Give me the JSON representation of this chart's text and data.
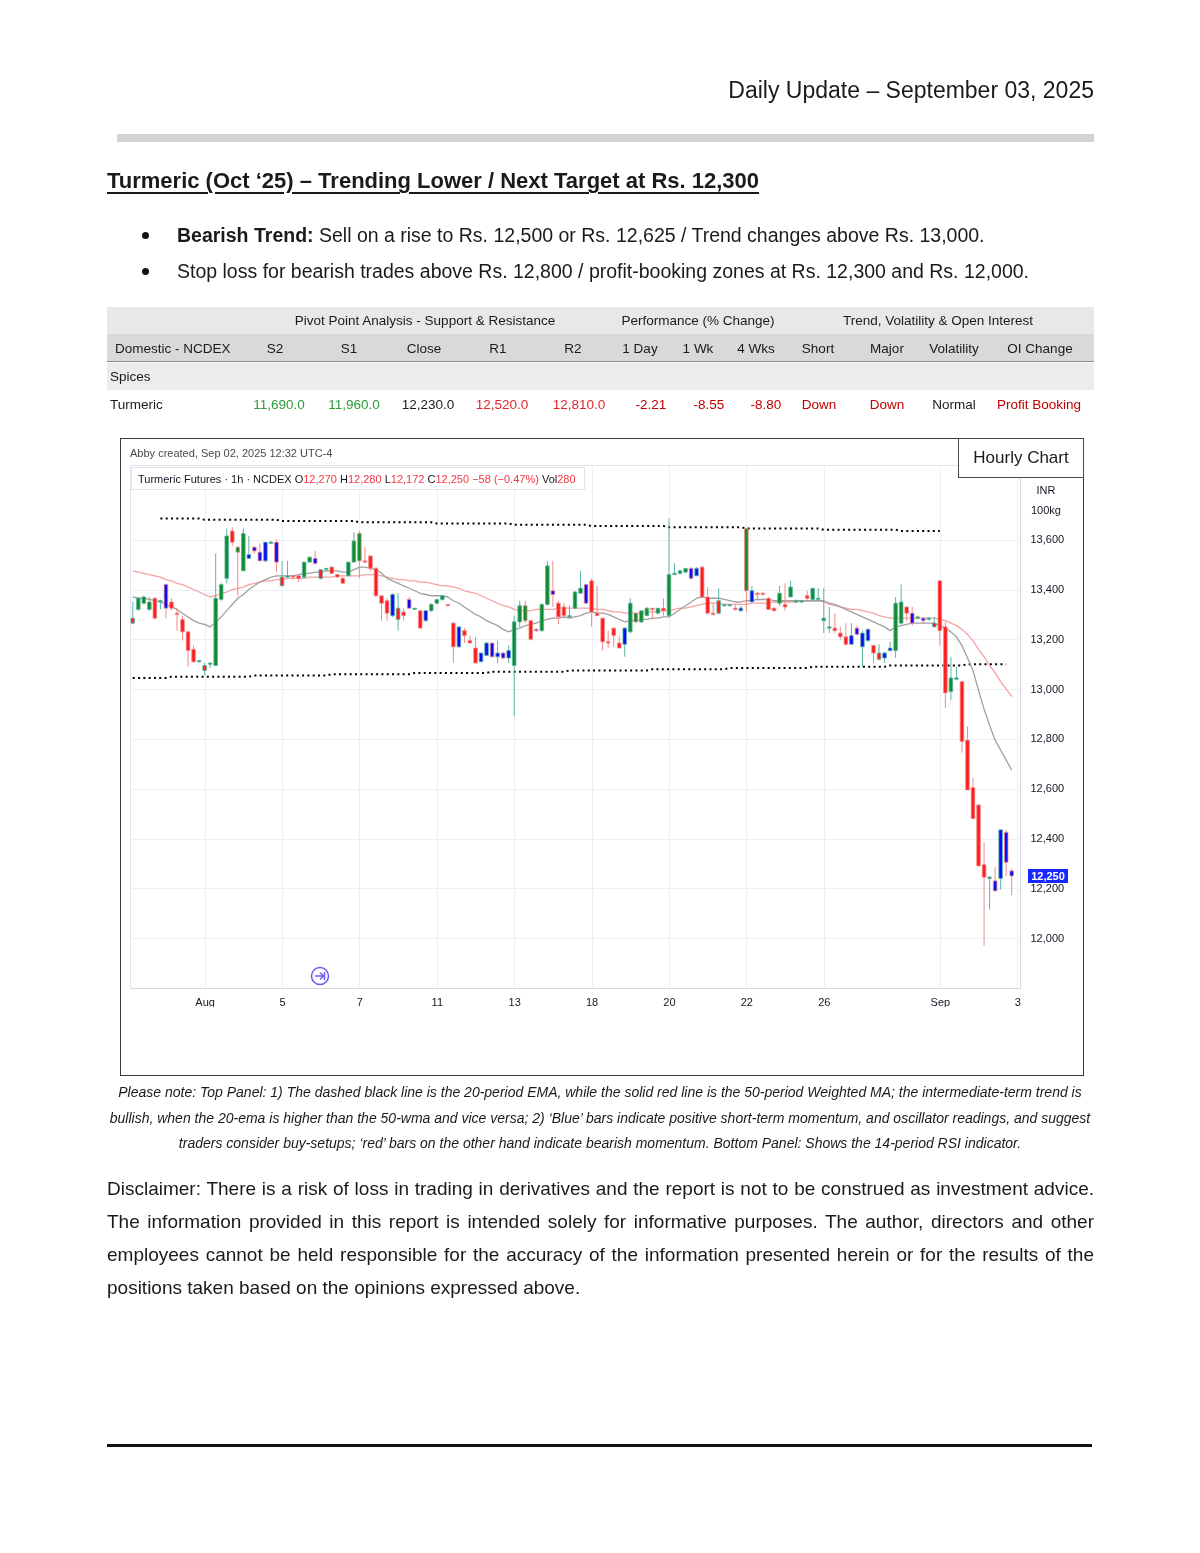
{
  "chart_data": [
    {
      "type": "other",
      "title": "Turmeric (Oct ‘25) – Trending Lower / Next Target at Rs. 12,300",
      "subtitle": "Daily Update – September 03, 2025",
      "annotations": [
        "Bearish Trend: Sell on a rise to Rs. 12,500 or Rs. 12,625 / Trend changes above Rs. 13,000.",
        "Stop loss for bearish trades above Rs. 12,800 / profit-booking zones at Rs. 12,300 and Rs. 12,000."
      ]
    },
    {
      "type": "candlestick",
      "title": "Hourly Chart",
      "subtitle": "Turmeric Futures · 1h · NCDEX O12,270 H12,280 L12,172 C12,250 −58 (−0.47%) Vol280",
      "ylabel": "INR 100kg",
      "categories": [
        null,
        null,
        null,
        null,
        null,
        null,
        null,
        null,
        null,
        null,
        null,
        null,
        null,
        "Aug",
        null,
        null,
        null,
        null,
        null,
        null,
        null,
        null,
        null,
        null,
        null,
        null,
        null,
        "5",
        null,
        null,
        null,
        null,
        null,
        null,
        null,
        null,
        null,
        null,
        null,
        null,
        null,
        "7",
        null,
        null,
        null,
        null,
        null,
        null,
        null,
        null,
        null,
        null,
        null,
        null,
        null,
        "11",
        null,
        null,
        null,
        null,
        null,
        null,
        null,
        null,
        null,
        null,
        null,
        null,
        null,
        "13",
        null,
        null,
        null,
        null,
        null,
        null,
        null,
        null,
        null,
        null,
        null,
        null,
        null,
        "18",
        null,
        null,
        null,
        null,
        null,
        null,
        null,
        null,
        null,
        null,
        null,
        null,
        null,
        "20",
        null,
        null,
        null,
        null,
        null,
        null,
        null,
        null,
        null,
        null,
        null,
        null,
        null,
        "22",
        null,
        null,
        null,
        null,
        null,
        null,
        null,
        null,
        null,
        null,
        null,
        null,
        null,
        "26",
        null,
        null,
        null,
        null,
        null,
        null,
        null,
        null,
        null,
        null,
        null,
        null,
        null,
        null,
        null,
        null,
        null,
        null,
        null,
        null,
        "Sep",
        null,
        null,
        null,
        null,
        null,
        null,
        null,
        null,
        null,
        null,
        null,
        null,
        null,
        "3"
      ],
      "ohlc": [
        [
          13265,
          13350,
          13260,
          13285
        ],
        [
          13320,
          13370,
          13315,
          13365
        ],
        [
          13345,
          13375,
          13340,
          13370
        ],
        [
          13320,
          13370,
          13315,
          13350
        ],
        [
          13365,
          13370,
          13280,
          13285
        ],
        [
          13350,
          13360,
          13320,
          13355
        ],
        [
          13420,
          13425,
          13285,
          13325
        ],
        [
          13350,
          13365,
          13315,
          13325
        ],
        [
          13305,
          13325,
          13235,
          13300
        ],
        [
          13280,
          13295,
          13195,
          13230
        ],
        [
          13230,
          13235,
          13090,
          13155
        ],
        [
          13160,
          13175,
          13105,
          13110
        ],
        [
          13110,
          13115,
          13105,
          13115
        ],
        [
          13075,
          13105,
          13055,
          13095
        ],
        [
          13100,
          13105,
          13085,
          13105
        ],
        [
          13095,
          13545,
          13095,
          13365
        ],
        [
          13360,
          13425,
          13355,
          13420
        ],
        [
          13445,
          13645,
          13425,
          13615
        ],
        [
          13635,
          13650,
          13575,
          13590
        ],
        [
          13570,
          13575,
          13375,
          13550
        ],
        [
          13475,
          13645,
          13475,
          13625
        ],
        [
          13525,
          13615,
          13525,
          13540
        ],
        [
          13570,
          13575,
          13545,
          13555
        ],
        [
          13550,
          13585,
          13515,
          13515
        ],
        [
          13515,
          13590,
          13510,
          13590
        ],
        [
          13585,
          13595,
          13585,
          13590
        ],
        [
          13590,
          13600,
          13470,
          13510
        ],
        [
          13415,
          13515,
          13415,
          13450
        ],
        [
          13450,
          13515,
          13445,
          13455
        ],
        [
          13455,
          13460,
          13440,
          13450
        ],
        [
          13455,
          13455,
          13430,
          13445
        ],
        [
          13450,
          13510,
          13445,
          13510
        ],
        [
          13510,
          13530,
          13510,
          13530
        ],
        [
          13525,
          13555,
          13500,
          13505
        ],
        [
          13445,
          13480,
          13440,
          13480
        ],
        [
          13480,
          13485,
          13475,
          13485
        ],
        [
          13490,
          13495,
          13465,
          13465
        ],
        [
          13460,
          13460,
          13450,
          13450
        ],
        [
          13445,
          13450,
          13425,
          13425
        ],
        [
          13455,
          13510,
          13455,
          13510
        ],
        [
          13510,
          13630,
          13510,
          13595
        ],
        [
          13625,
          13635,
          13445,
          13515
        ],
        [
          13515,
          13570,
          13505,
          13510
        ],
        [
          13535,
          13535,
          13475,
          13485
        ],
        [
          13485,
          13490,
          13370,
          13375
        ],
        [
          13375,
          13375,
          13275,
          13345
        ],
        [
          13355,
          13365,
          13275,
          13305
        ],
        [
          13295,
          13385,
          13290,
          13380
        ],
        [
          13280,
          13385,
          13235,
          13325
        ],
        [
          13310,
          13325,
          13275,
          13295
        ],
        [
          13360,
          13370,
          13325,
          13325
        ],
        [
          13320,
          13325,
          13320,
          13325
        ],
        [
          13315,
          13315,
          13245,
          13245
        ],
        [
          13275,
          13315,
          13270,
          13315
        ],
        [
          13315,
          13345,
          13310,
          13340
        ],
        [
          13345,
          13360,
          13340,
          13360
        ],
        [
          13360,
          13375,
          13355,
          13375
        ],
        [
          13340,
          13340,
          13335,
          13335
        ],
        [
          13265,
          13270,
          13105,
          13170
        ],
        [
          13170,
          13250,
          13165,
          13250
        ],
        [
          13235,
          13245,
          13185,
          13215
        ],
        [
          13195,
          13215,
          13185,
          13185
        ],
        [
          13165,
          13210,
          13105,
          13105
        ],
        [
          13110,
          13145,
          13110,
          13145
        ],
        [
          13135,
          13190,
          13135,
          13185
        ],
        [
          13185,
          13185,
          13130,
          13130
        ],
        [
          13130,
          13195,
          13105,
          13145
        ],
        [
          13145,
          13150,
          13120,
          13125
        ],
        [
          13125,
          13175,
          13105,
          13155
        ],
        [
          13095,
          13295,
          12890,
          13270
        ],
        [
          13270,
          13355,
          13250,
          13335
        ],
        [
          13335,
          13355,
          13265,
          13275
        ],
        [
          13275,
          13275,
          13195,
          13200
        ],
        [
          13240,
          13245,
          13230,
          13235
        ],
        [
          13235,
          13345,
          13230,
          13340
        ],
        [
          13340,
          13515,
          13335,
          13495
        ],
        [
          13395,
          13515,
          13330,
          13380
        ],
        [
          13345,
          13355,
          13260,
          13290
        ],
        [
          13330,
          13345,
          13285,
          13295
        ],
        [
          13290,
          13335,
          13285,
          13295
        ],
        [
          13325,
          13395,
          13320,
          13390
        ],
        [
          13385,
          13475,
          13385,
          13405
        ],
        [
          13420,
          13420,
          13345,
          13345
        ],
        [
          13435,
          13445,
          13250,
          13310
        ],
        [
          13305,
          13415,
          13295,
          13295
        ],
        [
          13285,
          13285,
          13155,
          13190
        ],
        [
          13190,
          13235,
          13165,
          13185
        ],
        [
          13245,
          13245,
          13170,
          13215
        ],
        [
          13185,
          13215,
          13165,
          13165
        ],
        [
          13180,
          13250,
          13130,
          13245
        ],
        [
          13230,
          13365,
          13225,
          13345
        ],
        [
          13305,
          13305,
          13265,
          13270
        ],
        [
          13270,
          13315,
          13265,
          13315
        ],
        [
          13295,
          13330,
          13295,
          13325
        ],
        [
          13325,
          13325,
          13280,
          13320
        ],
        [
          13305,
          13325,
          13300,
          13325
        ],
        [
          13325,
          13365,
          13295,
          13315
        ],
        [
          13295,
          13685,
          13295,
          13460
        ],
        [
          13460,
          13505,
          13460,
          13465
        ],
        [
          13465,
          13480,
          13460,
          13475
        ],
        [
          13470,
          13485,
          13465,
          13485
        ],
        [
          13485,
          13490,
          13440,
          13445
        ],
        [
          13455,
          13490,
          13455,
          13485
        ],
        [
          13490,
          13495,
          13370,
          13370
        ],
        [
          13370,
          13410,
          13300,
          13305
        ],
        [
          13305,
          13345,
          13295,
          13300
        ],
        [
          13305,
          13405,
          13300,
          13355
        ],
        [
          13335,
          13340,
          13330,
          13340
        ],
        [
          13335,
          13340,
          13330,
          13340
        ],
        [
          13325,
          13340,
          13315,
          13320
        ],
        [
          13315,
          13335,
          13310,
          13325
        ],
        [
          13645,
          13645,
          13310,
          13395
        ],
        [
          13350,
          13415,
          13350,
          13395
        ],
        [
          13385,
          13390,
          13355,
          13380
        ],
        [
          13385,
          13390,
          13375,
          13380
        ],
        [
          13365,
          13370,
          13320,
          13320
        ],
        [
          13325,
          13330,
          13310,
          13315
        ],
        [
          13345,
          13415,
          13335,
          13385
        ],
        [
          13340,
          13425,
          13315,
          13330
        ],
        [
          13370,
          13435,
          13370,
          13410
        ],
        [
          13350,
          13360,
          13345,
          13355
        ],
        [
          13350,
          13355,
          13345,
          13355
        ],
        [
          13375,
          13395,
          13350,
          13365
        ],
        [
          13360,
          13405,
          13355,
          13405
        ],
        [
          13360,
          13405,
          13355,
          13365
        ],
        [
          13275,
          13405,
          13225,
          13285
        ],
        [
          13245,
          13330,
          13225,
          13250
        ],
        [
          13245,
          13305,
          13225,
          13235
        ],
        [
          13225,
          13250,
          13200,
          13210
        ],
        [
          13210,
          13265,
          13175,
          13180
        ],
        [
          13180,
          13265,
          13180,
          13215
        ],
        [
          13245,
          13255,
          13215,
          13220
        ],
        [
          13170,
          13235,
          13090,
          13225
        ],
        [
          13195,
          13245,
          13190,
          13240
        ],
        [
          13175,
          13180,
          13105,
          13145
        ],
        [
          13120,
          13180,
          13115,
          13145
        ],
        [
          13125,
          13150,
          13105,
          13145
        ],
        [
          13155,
          13190,
          13150,
          13165
        ],
        [
          13155,
          13370,
          13125,
          13345
        ],
        [
          13265,
          13420,
          13260,
          13350
        ],
        [
          13330,
          13330,
          13275,
          13305
        ],
        [
          13305,
          13330,
          13255,
          13265
        ],
        [
          13285,
          13295,
          13280,
          13290
        ],
        [
          13285,
          13290,
          13260,
          13275
        ],
        [
          13280,
          13290,
          13275,
          13285
        ],
        [
          13250,
          13290,
          13250,
          13265
        ],
        [
          13435,
          13435,
          13175,
          13235
        ],
        [
          13250,
          13270,
          12925,
          12985
        ],
        [
          12990,
          13130,
          12955,
          13045
        ],
        [
          13040,
          13090,
          13035,
          13045
        ],
        [
          13030,
          13030,
          12745,
          12790
        ],
        [
          12795,
          12850,
          12595,
          12595
        ],
        [
          12605,
          12645,
          12480,
          12480
        ],
        [
          12535,
          12535,
          12290,
          12290
        ],
        [
          12295,
          12385,
          11970,
          12245
        ],
        [
          12240,
          12250,
          12115,
          12245
        ],
        [
          12230,
          12285,
          12190,
          12190
        ],
        [
          12240,
          12435,
          12195,
          12435
        ],
        [
          12425,
          12435,
          12250,
          12305
        ],
        [
          12270,
          12280,
          12172,
          12250
        ],
        null
      ],
      "colors": [
        "#ff1c1c",
        "#118c2e",
        "#118c2e",
        "#118c2e",
        "#ff1c1c",
        "#118c2e",
        "#0c0cf5",
        "#ff1c1c",
        "#ff1c1c",
        "#ff1c1c",
        "#ff1c1c",
        "#ff1c1c",
        "#118c2e",
        "#ff1c1c",
        "#118c2e",
        "#118c2e",
        "#118c2e",
        "#118c2e",
        "#ff1c1c",
        "#118c2e",
        "#118c2e",
        "#0c0cf5",
        "#0c0cf5",
        "#0c0cf5",
        "#0c0cf5",
        "#118c2e",
        "#0c0cf5",
        "#ff1c1c",
        "#118c2e",
        "#ff1c1c",
        "#ff1c1c",
        "#118c2e",
        "#118c2e",
        "#0c0cf5",
        "#ff1c1c",
        "#118c2e",
        "#ff1c1c",
        "#ff1c1c",
        "#ff1c1c",
        "#118c2e",
        "#118c2e",
        "#118c2e",
        "#ff1c1c",
        "#ff1c1c",
        "#ff1c1c",
        "#ff1c1c",
        "#ff1c1c",
        "#0c0cf5",
        "#ff1c1c",
        "#ff1c1c",
        "#0c0cf5",
        "#118c2e",
        "#ff1c1c",
        "#0c0cf5",
        "#118c2e",
        "#118c2e",
        "#118c2e",
        "#ff1c1c",
        "#ff1c1c",
        "#0c0cf5",
        "#ff1c1c",
        "#ff1c1c",
        "#ff1c1c",
        "#0c0cf5",
        "#0c0cf5",
        "#0c0cf5",
        "#0c0cf5",
        "#0c0cf5",
        "#0c0cf5",
        "#118c2e",
        "#118c2e",
        "#118c2e",
        "#ff1c1c",
        "#0c0cf5",
        "#118c2e",
        "#118c2e",
        "#0c0cf5",
        "#ff1c1c",
        "#ff1c1c",
        "#118c2e",
        "#118c2e",
        "#118c2e",
        "#0c0cf5",
        "#ff1c1c",
        "#ff1c1c",
        "#ff1c1c",
        "#ff1c1c",
        "#ff1c1c",
        "#ff1c1c",
        "#0c0cf5",
        "#118c2e",
        "#118c2e",
        "#118c2e",
        "#118c2e",
        "#ff1c1c",
        "#118c2e",
        "#ff1c1c",
        "#118c2e",
        "#118c2e",
        "#118c2e",
        "#118c2e",
        "#0c0cf5",
        "#0c0cf5",
        "#ff1c1c",
        "#ff1c1c",
        "#ff1c1c",
        "#ff1c1c",
        "#118c2e",
        "#118c2e",
        "#ff1c1c",
        "#0c0cf5",
        "#118c2e",
        "#0c0cf5",
        "#ff1c1c",
        "#ff1c1c",
        "#ff1c1c",
        "#ff1c1c",
        "#118c2e",
        "#ff1c1c",
        "#118c2e",
        "#118c2e",
        "#118c2e",
        "#ff1c1c",
        "#118c2e",
        "#118c2e",
        "#118c2e",
        "#118c2e",
        "#ff1c1c",
        "#ff1c1c",
        "#ff1c1c",
        "#0c0cf5",
        "#0c0cf5",
        "#0c0cf5",
        "#0c0cf5",
        "#ff1c1c",
        "#ff1c1c",
        "#0c0cf5",
        "#0c0cf5",
        "#118c2e",
        "#118c2e",
        "#ff1c1c",
        "#0c0cf5",
        "#118c2e",
        "#0c0cf5",
        "#118c2e",
        "#ff1c1c",
        "#ff1c1c",
        "#ff1c1c",
        "#118c2e",
        "#118c2e",
        "#ff1c1c",
        "#ff1c1c",
        "#ff1c1c",
        "#ff1c1c",
        "#ff1c1c",
        "#118c2e",
        "#0c0cf5",
        "#0c0cf5",
        "#0c0cf5",
        "#0c0cf5",
        null
      ],
      "series": [
        {
          "type": "line",
          "color": "#000000",
          "line_style": "dotted",
          "values": [
            null,
            null,
            null,
            null,
            null,
            13685,
            13685,
            13685,
            13685,
            13685,
            13685,
            13685,
            13685,
            13680,
            13680,
            13680,
            13680,
            13680,
            13680,
            13680,
            13680,
            13680,
            13680,
            13680,
            13680,
            13680,
            13680,
            13675,
            13675,
            13675,
            13675,
            13675,
            13675,
            13675,
            13675,
            13675,
            13675,
            13675,
            13675,
            13675,
            13675,
            13670,
            13670,
            13670,
            13670,
            13670,
            13670,
            13670,
            13670,
            13670,
            13670,
            13670,
            13670,
            13670,
            13670,
            13665,
            13665,
            13665,
            13665,
            13665,
            13665,
            13665,
            13665,
            13665,
            13665,
            13665,
            13665,
            13665,
            13665,
            13660,
            13660,
            13660,
            13660,
            13660,
            13660,
            13660,
            13660,
            13660,
            13660,
            13660,
            13660,
            13660,
            13660,
            13655,
            13655,
            13655,
            13655,
            13655,
            13655,
            13655,
            13655,
            13655,
            13655,
            13655,
            13655,
            13655,
            13655,
            13650,
            13650,
            13650,
            13650,
            13650,
            13650,
            13650,
            13650,
            13650,
            13650,
            13650,
            13650,
            13650,
            13650,
            13645,
            13645,
            13645,
            13645,
            13645,
            13645,
            13645,
            13645,
            13645,
            13645,
            13645,
            13645,
            13645,
            13645,
            13640,
            13640,
            13640,
            13640,
            13640,
            13640,
            13640,
            13640,
            13640,
            13640,
            13640,
            13640,
            13640,
            13640,
            13635,
            13635,
            13635,
            13635,
            13635,
            13635,
            13635,
            13635,
            null,
            null,
            null,
            null,
            null,
            null,
            null,
            null,
            null,
            null,
            null,
            null,
            null,
            null
          ]
        },
        {
          "type": "line",
          "color": "#000000",
          "line_style": "dotted",
          "values": [
            13045,
            13045,
            13045,
            13045,
            13045,
            13045,
            13045,
            13050,
            13050,
            13050,
            13050,
            13050,
            13050,
            13050,
            13050,
            13050,
            13050,
            13050,
            13050,
            13050,
            13050,
            13050,
            13055,
            13055,
            13055,
            13055,
            13055,
            13055,
            13055,
            13055,
            13055,
            13055,
            13055,
            13055,
            13055,
            13055,
            13060,
            13060,
            13060,
            13060,
            13060,
            13060,
            13060,
            13060,
            13060,
            13060,
            13060,
            13060,
            13060,
            13060,
            13060,
            13065,
            13065,
            13065,
            13065,
            13065,
            13065,
            13065,
            13065,
            13065,
            13065,
            13065,
            13065,
            13065,
            13065,
            13070,
            13070,
            13070,
            13070,
            13070,
            13070,
            13070,
            13070,
            13070,
            13070,
            13070,
            13070,
            13070,
            13070,
            13075,
            13075,
            13075,
            13075,
            13075,
            13075,
            13075,
            13075,
            13075,
            13075,
            13075,
            13075,
            13075,
            13075,
            13075,
            13080,
            13080,
            13080,
            13080,
            13080,
            13080,
            13080,
            13080,
            13080,
            13080,
            13080,
            13080,
            13080,
            13080,
            13085,
            13085,
            13085,
            13085,
            13085,
            13085,
            13085,
            13085,
            13085,
            13085,
            13085,
            13085,
            13085,
            13085,
            13085,
            13090,
            13090,
            13090,
            13090,
            13090,
            13090,
            13090,
            13090,
            13090,
            13090,
            13090,
            13090,
            13090,
            13090,
            13095,
            13095,
            13095,
            13095,
            13095,
            13095,
            13095,
            13095,
            13095,
            13095,
            13095,
            13095,
            13095,
            13095,
            13100,
            13100,
            13100,
            13100,
            13100,
            13100,
            13100,
            13100,
            null,
            null
          ]
        },
        {
          "type": "line",
          "color": "#f4a3a3",
          "values": [
            13475,
            13470,
            13465,
            13460,
            13455,
            13450,
            13440,
            13435,
            13425,
            13420,
            13410,
            13400,
            13390,
            13380,
            13370,
            13375,
            13385,
            13390,
            13400,
            13405,
            13410,
            13420,
            13425,
            13430,
            13435,
            13435,
            13440,
            13440,
            13445,
            13445,
            13445,
            13445,
            13450,
            13450,
            13450,
            13450,
            13450,
            13455,
            13455,
            13455,
            13455,
            13455,
            13460,
            13460,
            13460,
            13455,
            13450,
            13445,
            13440,
            13440,
            13435,
            13435,
            13430,
            13430,
            13425,
            13420,
            13415,
            13415,
            13410,
            13405,
            13395,
            13390,
            13385,
            13375,
            13365,
            13355,
            13345,
            13335,
            13330,
            13320,
            13315,
            13315,
            13315,
            13320,
            13320,
            13320,
            13320,
            13325,
            13325,
            13325,
            13325,
            13325,
            13325,
            13325,
            13320,
            13320,
            13315,
            13310,
            13310,
            13305,
            13305,
            13305,
            13305,
            13310,
            13310,
            13310,
            13315,
            13315,
            13320,
            13325,
            13325,
            13330,
            13335,
            13340,
            13345,
            13345,
            13345,
            13340,
            13340,
            13340,
            13340,
            13340,
            13345,
            13345,
            13345,
            13345,
            13350,
            13350,
            13350,
            13350,
            13350,
            13355,
            13355,
            13355,
            13355,
            13350,
            13340,
            13335,
            13330,
            13325,
            13320,
            13320,
            13315,
            13310,
            13305,
            13295,
            13290,
            13285,
            13285,
            13285,
            13285,
            13285,
            13285,
            13285,
            13285,
            13285,
            13280,
            13275,
            13265,
            13255,
            13240,
            13220,
            13195,
            13160,
            13130,
            13095,
            13065,
            13030,
            13000,
            12970,
            null
          ]
        },
        {
          "type": "line",
          "color": "#a0a0a0",
          "values": [
            13370,
            13365,
            13365,
            13360,
            13355,
            13350,
            13340,
            13330,
            13320,
            13305,
            13290,
            13275,
            13265,
            13260,
            13250,
            13270,
            13290,
            13315,
            13340,
            13365,
            13380,
            13400,
            13415,
            13430,
            13440,
            13450,
            13455,
            13455,
            13455,
            13455,
            13460,
            13465,
            13465,
            13470,
            13470,
            13475,
            13475,
            13475,
            13470,
            13470,
            13480,
            13490,
            13490,
            13485,
            13480,
            13465,
            13445,
            13435,
            13425,
            13415,
            13405,
            13395,
            13385,
            13380,
            13375,
            13375,
            13375,
            13370,
            13355,
            13345,
            13330,
            13315,
            13300,
            13290,
            13275,
            13265,
            13255,
            13240,
            13230,
            13240,
            13245,
            13255,
            13260,
            13265,
            13275,
            13280,
            13285,
            13285,
            13290,
            13285,
            13290,
            13295,
            13305,
            13310,
            13305,
            13305,
            13300,
            13290,
            13280,
            13270,
            13275,
            13275,
            13280,
            13280,
            13285,
            13285,
            13290,
            13290,
            13305,
            13320,
            13335,
            13350,
            13365,
            13370,
            13365,
            13365,
            13365,
            13360,
            13355,
            13350,
            13350,
            13355,
            13355,
            13360,
            13360,
            13360,
            13355,
            13355,
            13355,
            13355,
            13355,
            13355,
            13355,
            13355,
            13355,
            13355,
            13345,
            13340,
            13330,
            13320,
            13310,
            13300,
            13290,
            13280,
            13270,
            13260,
            13250,
            13235,
            13250,
            13255,
            13260,
            13265,
            13265,
            13265,
            13265,
            13265,
            13255,
            13245,
            13230,
            13210,
            13175,
            13125,
            13075,
            12995,
            12920,
            12855,
            12795,
            12755,
            12715,
            12675,
            null
          ]
        }
      ],
      "ylim": [
        11800,
        13900
      ],
      "yticks": [
        {
          "value": 12000,
          "label": "12,000"
        },
        {
          "value": 12200,
          "label": "12,200"
        },
        {
          "value": 12400,
          "label": "12,400"
        },
        {
          "value": 12600,
          "label": "12,600"
        },
        {
          "value": 12800,
          "label": "12,800"
        },
        {
          "value": 13000,
          "label": "13,000"
        },
        {
          "value": 13200,
          "label": "13,200"
        },
        {
          "value": 13400,
          "label": "13,400"
        },
        {
          "value": 13600,
          "label": "13,600"
        }
      ],
      "grid": true,
      "annotations": [
        "Abby created, Sep 02, 2025 12:32 UTC-4",
        "12,250",
        "Please note: Top Panel: 1) The dashed black line is the 20-period EMA, while the solid red line is the 50-period Weighted MA; the intermediate-term trend is bullish, when the 20-ema is higher than the 50-wma and vice versa; 2) ‘Blue’ bars indicate positive short-term momentum, and oscillator readings, and suggest traders consider buy-setups; ‘red’ bars on the other hand indicate bearish momentum. Bottom Panel: Shows the 14-period RSI indicator.",
        "Disclaimer: There is a risk of loss in trading in derivatives and the report is not to be construed as investment advice. The information provided in this report is intended solely for informative purposes. The author, directors and other employees cannot be held responsible for the accuracy of the information presented herein or for the results of the positions taken based on the opinions expressed above.",
        "Pivot Point Analysis - Support & Resistance",
        "Performance (% Change)",
        "Trend, Volatility & Open Interest",
        "Domestic - NCDEX",
        "S2",
        "S1",
        "Close",
        "R1",
        "R2",
        "1 Day",
        "1 Wk",
        "4 Wks",
        "Short",
        "Major",
        "Volatility",
        "OI Change",
        "Spices",
        "Turmeric",
        "11,690.0",
        "11,960.0",
        "12,230.0",
        "12,520.0",
        "12,810.0",
        "-2.21",
        "-8.55",
        "-8.80",
        "Down",
        "Down",
        "Normal",
        "Profit Booking"
      ]
    }
  ]
}
